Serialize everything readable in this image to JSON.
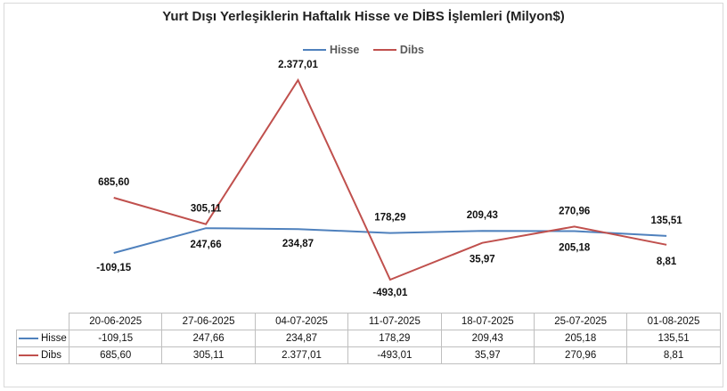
{
  "colors": {
    "hisse": "#4f81bd",
    "dibs": "#c0504d",
    "grid": "#bfbfbf"
  },
  "chart_data": {
    "type": "line",
    "title": "Yurt Dışı Yerleşiklerin Haftalık Hisse ve DİBS İşlemleri (Milyon$)",
    "categories": [
      "20-06-2025",
      "27-06-2025",
      "04-07-2025",
      "11-07-2025",
      "18-07-2025",
      "25-07-2025",
      "01-08-2025"
    ],
    "series": [
      {
        "name": "Hisse",
        "values": [
          -109.15,
          247.66,
          234.87,
          178.29,
          209.43,
          205.18,
          135.51
        ],
        "labels": [
          "-109,15",
          "247,66",
          "234,87",
          "178,29",
          "209,43",
          "205,18",
          "135,51"
        ]
      },
      {
        "name": "Dibs",
        "values": [
          685.6,
          305.11,
          2377.01,
          -493.01,
          35.97,
          270.96,
          8.81
        ],
        "labels": [
          "685,60",
          "305,11",
          "2.377,01",
          "-493,01",
          "35,97",
          "270,96",
          "8,81"
        ]
      }
    ],
    "legend_position": "top",
    "grid": false,
    "data_table": true
  }
}
